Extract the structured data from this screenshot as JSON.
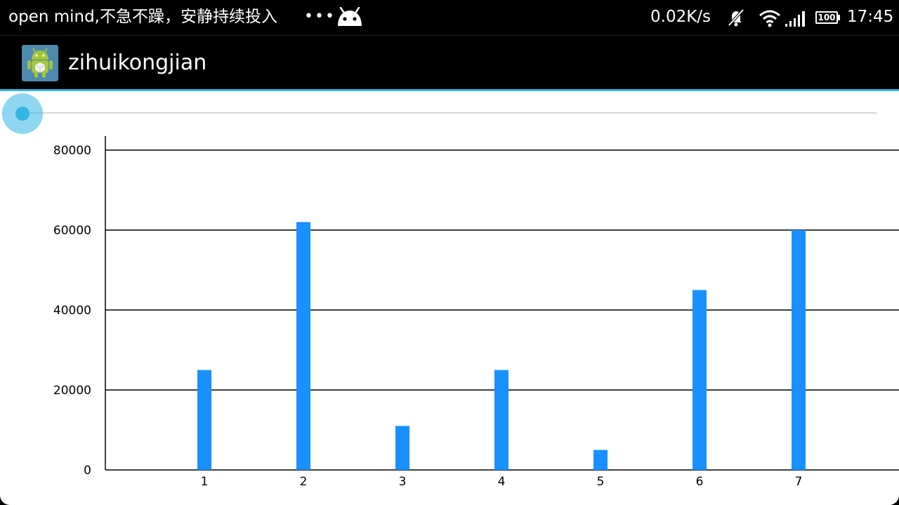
{
  "status_bar": {
    "notification_text": "open mind,不急不躁，安静持续投入",
    "more_indicator": "•••",
    "notification_icon": "android-head-icon",
    "net_speed": "0.02K/s",
    "battery_level": "100",
    "time": "17:45",
    "icons": [
      "mute-icon",
      "wifi-icon",
      "signal-icon",
      "battery-icon"
    ]
  },
  "action_bar": {
    "app_icon": "android-app-icon",
    "title": "zihuikongjian",
    "accent_color": "#33b5e5"
  },
  "seekbar": {
    "progress": 0,
    "track_color": "#d6d6d6",
    "thumb_color": "#33b5e5"
  },
  "chart_data": {
    "type": "bar",
    "categories": [
      "1",
      "2",
      "3",
      "4",
      "5",
      "6",
      "7"
    ],
    "values": [
      25000,
      62000,
      11000,
      25000,
      5000,
      45000,
      60000
    ],
    "ylim": [
      0,
      80000
    ],
    "yticks": [
      "0",
      "20000",
      "40000",
      "60000",
      "80000"
    ],
    "bar_color": "#1890ff",
    "grid": true
  }
}
